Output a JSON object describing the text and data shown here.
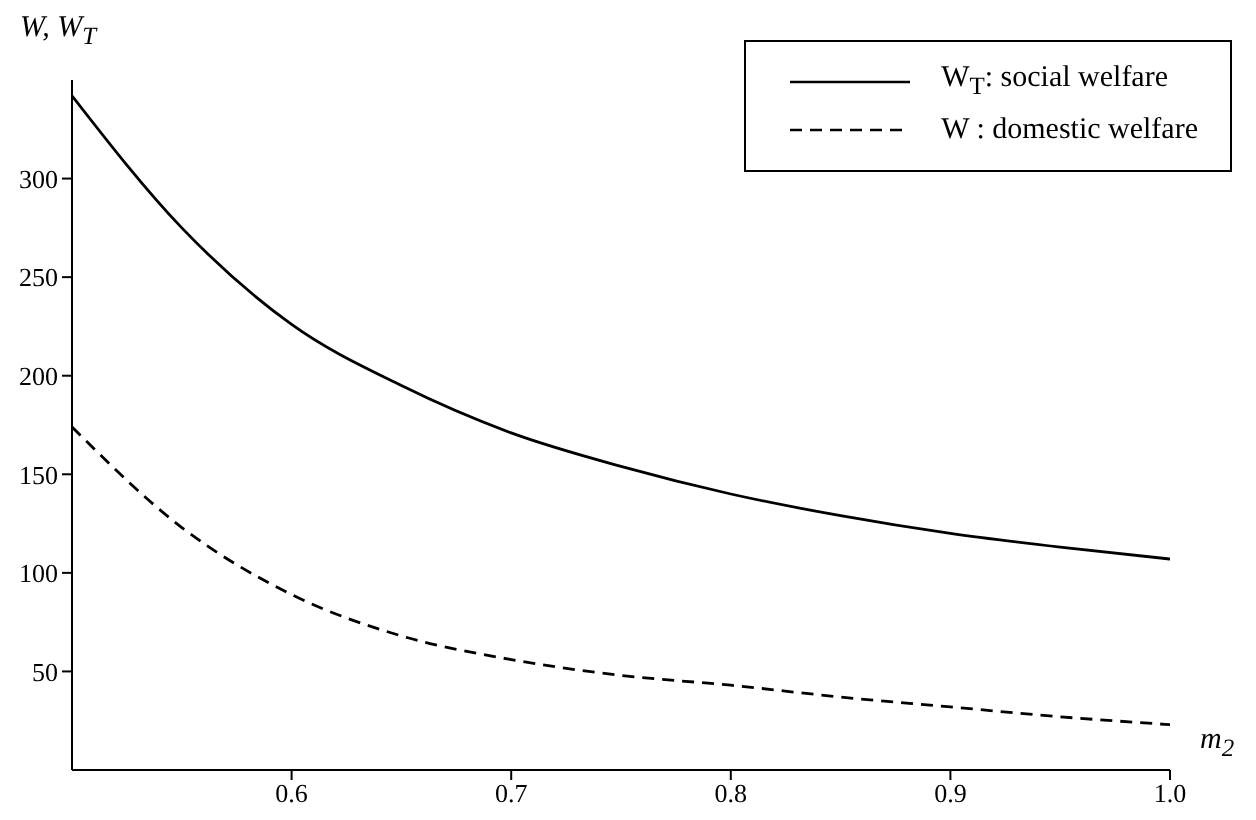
{
  "chart_data": {
    "type": "line",
    "xlabel": "m$_{2}$",
    "ylabel": "W, W$_{T}$",
    "x": [
      0.5,
      0.55,
      0.6,
      0.65,
      0.7,
      0.75,
      0.8,
      0.85,
      0.9,
      0.95,
      1.0
    ],
    "series": [
      {
        "name": "W$_{T}$: social welfare",
        "color": "#000000",
        "line_style": "solid",
        "values": [
          342,
          275,
          226,
          195,
          171,
          154,
          140,
          129,
          120,
          113,
          107
        ]
      },
      {
        "name": "W : domestic welfare",
        "color": "#000000",
        "line_style": "dashed",
        "values": [
          174,
          123,
          89,
          68,
          56,
          48,
          43,
          37,
          32,
          27,
          23
        ]
      }
    ],
    "xlim": [
      0.5,
      1.0
    ],
    "xticks": [
      0.6,
      0.7,
      0.8,
      0.9,
      {
        "value": 1.0,
        "label": "1.0"
      }
    ],
    "ylim": [
      0,
      350
    ],
    "yticks": [
      50,
      100,
      150,
      200,
      250,
      300
    ],
    "grid": false,
    "legend": "top right",
    "marker": "none"
  }
}
